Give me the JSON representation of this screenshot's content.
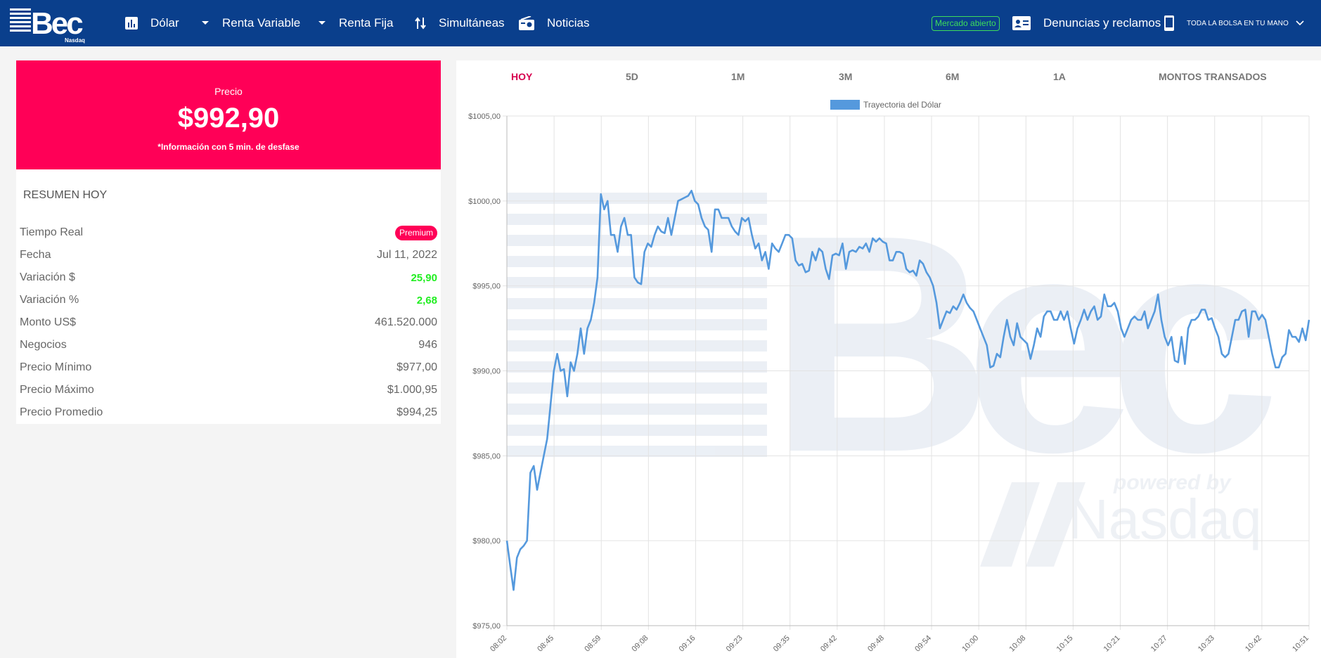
{
  "header": {
    "logo_text": "Bec",
    "logo_sub": "Nasdaq",
    "nav": {
      "dolar": "Dólar",
      "renta_variable": "Renta Variable",
      "renta_fija": "Renta Fija",
      "simultaneas": "Simultáneas",
      "noticias": "Noticias"
    },
    "mercado_status": "Mercado abierto",
    "denuncias": "Denuncias y reclamos",
    "app_promo": "TODA LA BOLSA EN TU MANO",
    "colors": {
      "bar": "#0a3f8c",
      "status": "#3ddc5b"
    }
  },
  "price_panel": {
    "label": "Precio",
    "value": "$992,90",
    "note": "*Información con 5 min. de desfase",
    "color": "#ff0057"
  },
  "summary": {
    "title": "RESUMEN HOY",
    "rows": [
      {
        "label": "Tiempo Real",
        "value": "Premium",
        "kind": "badge"
      },
      {
        "label": "Fecha",
        "value": "Jul 11, 2022",
        "kind": "text"
      },
      {
        "label": "Variación $",
        "value": "25,90",
        "kind": "green"
      },
      {
        "label": "Variación %",
        "value": "2,68",
        "kind": "green"
      },
      {
        "label": "Monto US$",
        "value": "461.520.000",
        "kind": "text"
      },
      {
        "label": "Negocios",
        "value": "946",
        "kind": "text"
      },
      {
        "label": "Precio Mínimo",
        "value": "$977,00",
        "kind": "text"
      },
      {
        "label": "Precio Máximo",
        "value": "$1.000,95",
        "kind": "text"
      },
      {
        "label": "Precio Promedio",
        "value": "$994,25",
        "kind": "text"
      }
    ]
  },
  "chart_tabs": {
    "hoy": "HOY",
    "d5": "5D",
    "m1": "1M",
    "m3": "3M",
    "m6": "6M",
    "a1": "1A",
    "montos": "MONTOS TRANSADOS"
  },
  "watermark": {
    "text": "Bec",
    "powered": "powered by",
    "nasdaq": "Nasdaq"
  },
  "chart_data": {
    "type": "line",
    "legend": "Trayectoria del Dólar",
    "line_color": "#5599dd",
    "ylim": [
      975,
      1005
    ],
    "y_ticks": [
      "$975,00",
      "$980,00",
      "$985,00",
      "$990,00",
      "$995,00",
      "$1000,00",
      "$1005,00"
    ],
    "x_labels": [
      "08:02",
      "08:45",
      "08:59",
      "09:08",
      "09:16",
      "09:23",
      "09:35",
      "09:42",
      "09:48",
      "09:54",
      "10:00",
      "10:08",
      "10:15",
      "10:21",
      "10:27",
      "10:33",
      "10:42",
      "10:51"
    ],
    "grid": true,
    "values": [
      980.0,
      978.5,
      977.1,
      979.0,
      979.5,
      979.7,
      980.0,
      984.0,
      984.4,
      983.0,
      984.0,
      985.0,
      986.0,
      988.0,
      990.0,
      991.0,
      990.0,
      990.1,
      988.5,
      990.5,
      990.0,
      991.0,
      992.5,
      991.0,
      992.5,
      993.0,
      994.0,
      995.5,
      1000.4,
      999.5,
      1000.0,
      998.0,
      998.0,
      997.0,
      998.5,
      999.0,
      998.0,
      998.0,
      995.5,
      995.2,
      995.1,
      997.0,
      997.5,
      997.3,
      998.0,
      998.5,
      998.2,
      998.1,
      999.0,
      998.0,
      999.0,
      1000.0,
      1000.1,
      1000.2,
      1000.3,
      1000.6,
      1000.0,
      999.8,
      999.0,
      998.5,
      998.3,
      997.0,
      999.5,
      999.5,
      999.0,
      999.0,
      999.0,
      998.5,
      998.2,
      998.0,
      999.0,
      998.8,
      999.0,
      998.0,
      997.2,
      997.5,
      996.5,
      997.0,
      996.0,
      997.5,
      997.2,
      997.0,
      997.5,
      998.0,
      998.0,
      997.8,
      996.5,
      996.2,
      996.3,
      995.8,
      995.9,
      997.0,
      996.5,
      997.2,
      997.0,
      996.0,
      995.4,
      996.8,
      996.9,
      996.8,
      997.5,
      996.0,
      997.0,
      997.1,
      997.0,
      997.3,
      997.2,
      997.5,
      997.0,
      997.8,
      997.6,
      997.8,
      997.6,
      997.5,
      996.5,
      996.5,
      997.0,
      997.0,
      996.9,
      996.0,
      995.8,
      995.9,
      995.6,
      996.5,
      996.3,
      995.8,
      995.5,
      995.0,
      994.0,
      992.5,
      993.0,
      993.5,
      993.4,
      993.8,
      993.6,
      994.0,
      994.5,
      994.0,
      993.7,
      993.5,
      993.0,
      992.5,
      992.0,
      991.5,
      990.2,
      990.3,
      991.0,
      990.8,
      992.0,
      993.0,
      992.0,
      991.5,
      992.8,
      992.0,
      991.8,
      991.6,
      990.7,
      991.5,
      992.5,
      992.0,
      993.2,
      993.5,
      993.5,
      993.0,
      993.0,
      993.5,
      993.0,
      993.5,
      992.5,
      991.6,
      992.5,
      993.0,
      993.6,
      993.0,
      993.5,
      993.8,
      993.0,
      993.2,
      994.5,
      993.8,
      993.8,
      994.0,
      993.5,
      992.5,
      992.0,
      992.5,
      993.0,
      993.2,
      993.0,
      993.0,
      993.5,
      992.5,
      993.0,
      993.5,
      994.5,
      993.0,
      992.0,
      991.5,
      992.0,
      990.6,
      990.5,
      992.0,
      990.4,
      992.5,
      993.0,
      993.0,
      993.2,
      993.6,
      993.6,
      993.0,
      993.1,
      992.5,
      992.0,
      991.0,
      990.8,
      991.0,
      992.0,
      993.0,
      993.0,
      993.5,
      993.6,
      992.0,
      993.5,
      993.5,
      993.0,
      993.3,
      993.0,
      992.0,
      991.0,
      990.2,
      990.2,
      990.8,
      991.0,
      992.4,
      992.0,
      992.0,
      991.7,
      992.5,
      991.8,
      993.0
    ]
  }
}
